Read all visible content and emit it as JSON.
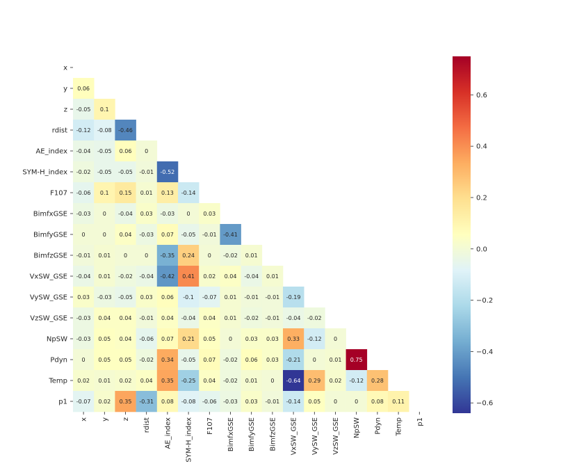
{
  "chart_data": {
    "type": "heatmap",
    "title": "",
    "xlabel": "",
    "ylabel": "",
    "variables": [
      "x",
      "y",
      "z",
      "rdist",
      "AE_index",
      "SYM-H_index",
      "F107",
      "BimfxGSE",
      "BimfyGSE",
      "BimfzGSE",
      "VxSW_GSE",
      "VySW_GSE",
      "VzSW_GSE",
      "NpSW",
      "Pdyn",
      "Temp",
      "p1"
    ],
    "matrix_lower": [
      [],
      [
        0.06
      ],
      [
        -0.05,
        0.1
      ],
      [
        -0.12,
        -0.08,
        -0.46
      ],
      [
        -0.04,
        -0.05,
        0.06,
        0
      ],
      [
        -0.02,
        -0.05,
        -0.05,
        -0.01,
        -0.52
      ],
      [
        -0.06,
        0.1,
        0.15,
        0.01,
        0.13,
        -0.14
      ],
      [
        -0.03,
        0,
        -0.04,
        0.03,
        -0.03,
        0,
        0.03
      ],
      [
        0,
        0,
        0.04,
        -0.03,
        0.07,
        -0.05,
        -0.01,
        -0.41
      ],
      [
        -0.01,
        0.01,
        0,
        0,
        -0.35,
        0.24,
        0,
        -0.02,
        0.01
      ],
      [
        -0.04,
        0.01,
        -0.02,
        -0.04,
        -0.42,
        0.41,
        0.02,
        0.04,
        -0.04,
        0.01
      ],
      [
        0.03,
        -0.03,
        -0.05,
        0.03,
        0.06,
        -0.1,
        -0.07,
        0.01,
        -0.01,
        -0.01,
        -0.19
      ],
      [
        -0.03,
        0.04,
        0.04,
        -0.01,
        0.04,
        -0.04,
        0.04,
        0.01,
        -0.02,
        -0.01,
        -0.04,
        -0.02
      ],
      [
        -0.03,
        0.05,
        0.04,
        -0.06,
        0.07,
        0.21,
        0.05,
        0,
        0.03,
        0.03,
        0.33,
        -0.12,
        0
      ],
      [
        0,
        0.05,
        0.05,
        -0.02,
        0.34,
        -0.05,
        0.07,
        -0.02,
        0.06,
        0.03,
        -0.21,
        0,
        0.01,
        0.75
      ],
      [
        0.02,
        0.01,
        0.02,
        0.04,
        0.35,
        -0.25,
        0.04,
        -0.02,
        0.01,
        0,
        -0.64,
        0.29,
        0.02,
        -0.12,
        0.28
      ],
      [
        -0.07,
        0.02,
        0.35,
        -0.31,
        0.08,
        -0.08,
        -0.06,
        -0.03,
        0.03,
        -0.01,
        -0.14,
        0.05,
        0,
        0,
        0.08,
        0.11
      ]
    ],
    "vmin": -0.64,
    "vmax": 0.75,
    "colormap": "RdYlBu_r",
    "colorbar_ticks": [
      0.6,
      0.4,
      0.2,
      0.0,
      -0.2,
      -0.4,
      -0.6
    ],
    "colorbar_tick_labels": [
      "0.6",
      "0.4",
      "0.2",
      "0.0",
      "−0.2",
      "−0.4",
      "−0.6"
    ],
    "colors": [
      "#313695",
      "#4575b4",
      "#74add1",
      "#abd9e9",
      "#e0f3f8",
      "#ffffbf",
      "#fee090",
      "#fdae61",
      "#f46d43",
      "#d73027",
      "#a50026"
    ],
    "mask": "upper-triangle-including-diagonal",
    "annotations": true,
    "colorbar": "right"
  }
}
